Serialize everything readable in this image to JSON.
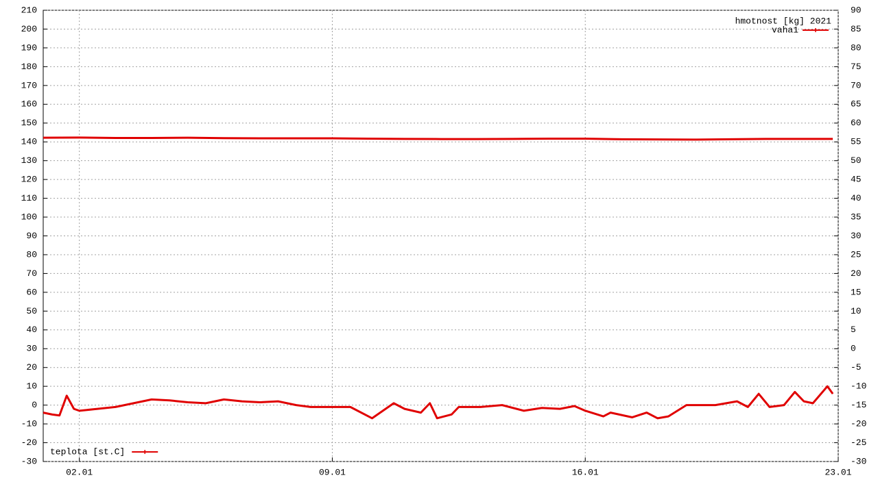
{
  "chart_data": {
    "type": "line",
    "title": "hmotnost [kg] 2021",
    "xlim": [
      1,
      23
    ],
    "xticks": [
      {
        "value": 2,
        "label": "02.01"
      },
      {
        "value": 9,
        "label": "09.01"
      },
      {
        "value": 16,
        "label": "16.01"
      },
      {
        "value": 23,
        "label": "23.01"
      }
    ],
    "ylim": [
      -30,
      210
    ],
    "yticks": [
      -30,
      -20,
      -10,
      0,
      10,
      20,
      30,
      40,
      50,
      60,
      70,
      80,
      90,
      100,
      110,
      120,
      130,
      140,
      150,
      160,
      170,
      180,
      190,
      200,
      210
    ],
    "y2lim": [
      -30,
      90
    ],
    "y2ticks": [
      -30,
      -25,
      -20,
      -15,
      -10,
      -5,
      0,
      5,
      10,
      15,
      20,
      25,
      30,
      35,
      40,
      45,
      50,
      55,
      60,
      65,
      70,
      75,
      80,
      85,
      90
    ],
    "grid": true,
    "series": [
      {
        "name": "vaha1",
        "color": "#e00000",
        "legend": "upper right",
        "x": [
          1,
          2,
          3,
          4,
          5,
          6,
          7,
          8,
          9,
          10,
          11,
          12,
          13,
          14,
          15,
          16,
          17,
          18,
          19,
          20,
          21,
          22,
          22.85
        ],
        "values": [
          142.2,
          142.3,
          142.1,
          142.1,
          142.2,
          142.0,
          141.9,
          141.9,
          141.9,
          141.7,
          141.6,
          141.5,
          141.5,
          141.6,
          141.7,
          141.7,
          141.4,
          141.3,
          141.2,
          141.4,
          141.6,
          141.6,
          141.6
        ]
      },
      {
        "name": "teplota [st.C]",
        "color": "#e00000",
        "legend": "lower left",
        "x": [
          1,
          1.25,
          1.45,
          1.65,
          1.85,
          2.0,
          2.5,
          3.0,
          3.5,
          4.0,
          4.5,
          5.0,
          5.5,
          6.0,
          6.5,
          7.0,
          7.5,
          8.0,
          8.4,
          8.6,
          9.0,
          9.5,
          10.1,
          10.7,
          11.0,
          11.45,
          11.7,
          11.9,
          12.3,
          12.5,
          13.1,
          13.7,
          14.3,
          14.8,
          15.3,
          15.7,
          16.0,
          16.5,
          16.7,
          17.3,
          17.7,
          18.0,
          18.3,
          18.8,
          19.6,
          20.2,
          20.5,
          20.8,
          21.1,
          21.5,
          21.8,
          22.05,
          22.3,
          22.7,
          22.85
        ],
        "values": [
          -4,
          -5,
          -5.5,
          5,
          -2,
          -3,
          -2,
          -1,
          1,
          3,
          2.5,
          1.5,
          1,
          3,
          2,
          1.5,
          2,
          0,
          -1,
          -1,
          -1,
          -1,
          -7,
          1,
          -2,
          -4,
          1,
          -7,
          -5,
          -1,
          -1,
          0,
          -3,
          -1.5,
          -2,
          -0.5,
          -3,
          -6,
          -4,
          -6.5,
          -4,
          -7,
          -6,
          0,
          0,
          2,
          -1,
          6,
          -1,
          0,
          7,
          2,
          1,
          10,
          6
        ]
      }
    ]
  }
}
